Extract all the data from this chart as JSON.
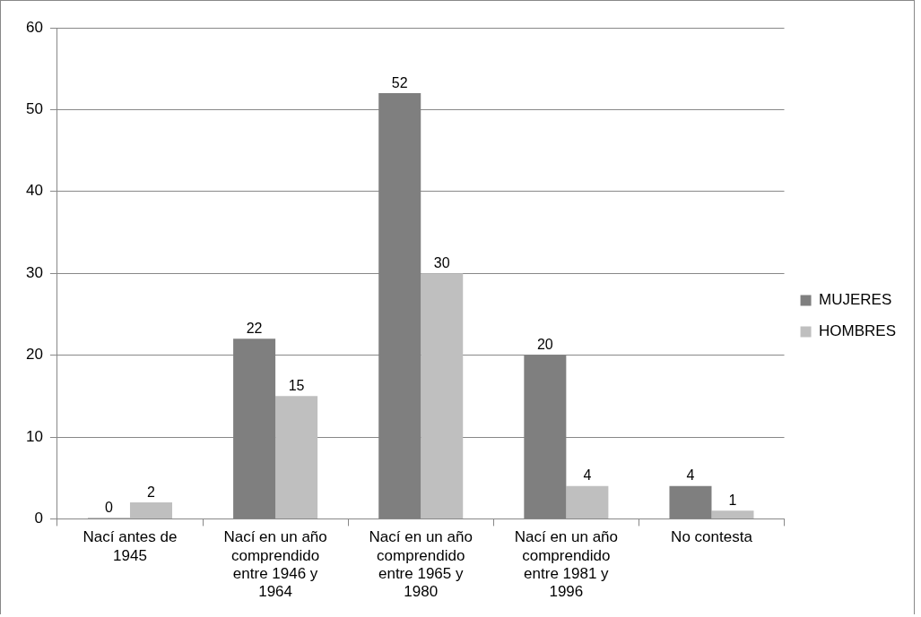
{
  "chart_data": {
    "type": "bar",
    "categories": [
      "Nací antes de 1945",
      "Nací en un año comprendido entre 1946 y 1964",
      "Nací en un año comprendido entre 1965 y 1980",
      "Nací en un año comprendido entre 1981 y 1996",
      "No contesta"
    ],
    "series": [
      {
        "name": "MUJERES",
        "color": "#7f7f7f",
        "values": [
          0,
          22,
          52,
          20,
          4
        ]
      },
      {
        "name": "HOMBRES",
        "color": "#bfbfbf",
        "values": [
          2,
          15,
          30,
          4,
          1
        ]
      }
    ],
    "ylim": [
      0,
      60
    ],
    "yticks": [
      0,
      10,
      20,
      30,
      40,
      50,
      60
    ],
    "grid": "y",
    "legend": "right",
    "data_labels": true
  }
}
